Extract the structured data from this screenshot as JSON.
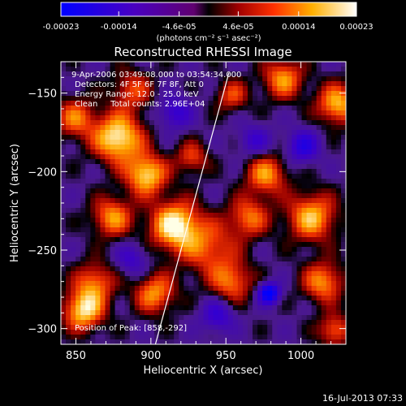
{
  "colorbar": {
    "tick_labels": [
      "-0.00023",
      "-0.00014",
      "-4.6e-05",
      "4.6e-05",
      "0.00014",
      "0.00023"
    ],
    "tick_values": [
      -0.00023,
      -0.00014,
      -4.6e-05,
      4.6e-05,
      0.00014,
      0.00023
    ],
    "range": [
      -0.00023,
      0.00023
    ],
    "units_label": "(photons cm⁻² s⁻¹ asec⁻²)"
  },
  "chart_data": {
    "type": "heatmap",
    "title": "Reconstructed RHESSI Image",
    "xlabel": "Heliocentric X (arcsec)",
    "ylabel": "Heliocentric Y (arcsec)",
    "xlim": [
      840,
      1030
    ],
    "ylim": [
      -310,
      -130
    ],
    "x_ticks": [
      850,
      900,
      950,
      1000
    ],
    "y_ticks": [
      -150,
      -200,
      -250,
      -300
    ],
    "x_tick_labels": [
      "850",
      "900",
      "950",
      "1000"
    ],
    "y_tick_labels": [
      "−150",
      "−200",
      "−250",
      "−300"
    ],
    "annotations": [
      "9-Apr-2006 03:49:08.000 to 03:54:34.000",
      "Detectors: 4F 5F 6F 7F 8F, Att 0",
      "Energy Range: 12.0 - 25.0 keV",
      "Clean     Total counts: 2.96E+04",
      "Position of Peak: [858,-292]"
    ],
    "limb_line": [
      [
        903,
        -310
      ],
      [
        952,
        -137
      ]
    ],
    "peak": [
      858,
      -292
    ],
    "colormap": "blue-purple-red-yellow-white"
  },
  "footer": {
    "timestamp": "16-Jul-2013 07:33"
  }
}
